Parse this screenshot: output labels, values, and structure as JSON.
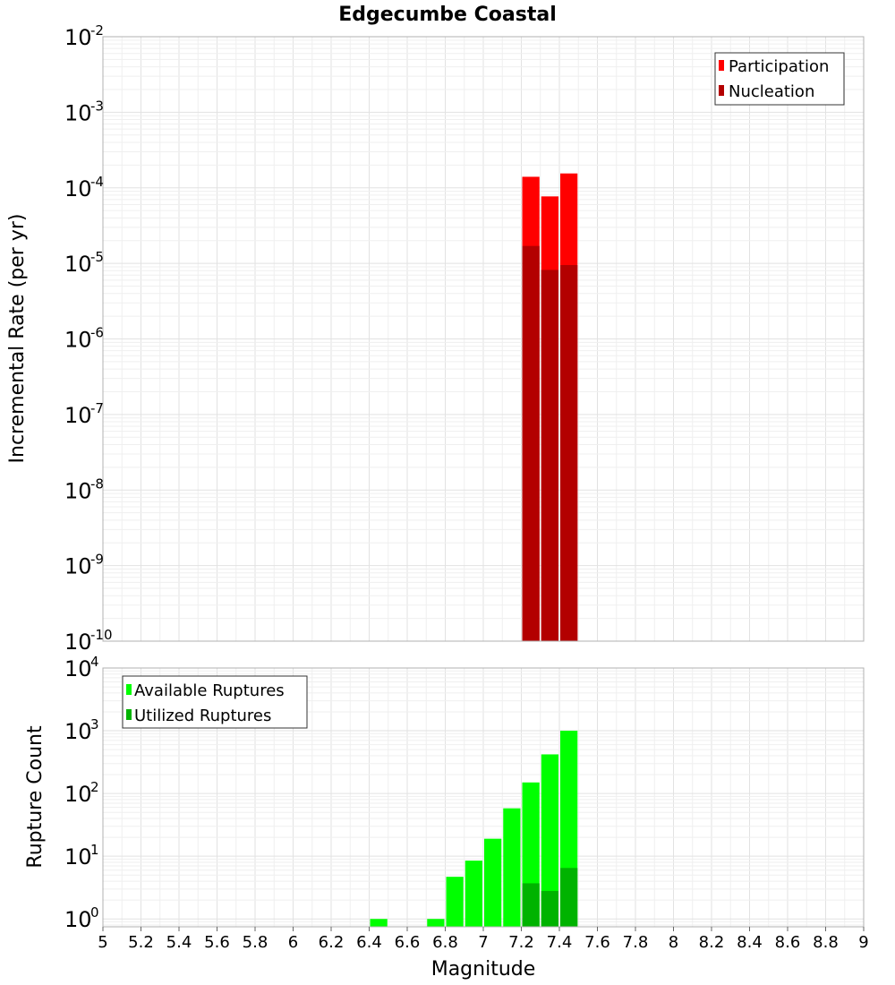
{
  "chart_data": [
    {
      "type": "bar",
      "title": "Edgecumbe Coastal",
      "xlabel": "",
      "ylabel": "Incremental Rate (per yr)",
      "yscale": "log",
      "ylim": [
        1e-10,
        0.01
      ],
      "xlim": [
        5,
        9
      ],
      "bin_width": 0.1,
      "grid": true,
      "legend_position": "top-right",
      "ytick_exponents": [
        "-2",
        "-3",
        "-4",
        "-5",
        "-6",
        "-7",
        "-8",
        "-9",
        "-10"
      ],
      "series": [
        {
          "name": "Participation",
          "color": "#ff0000",
          "x": [
            7.25,
            7.35,
            7.45
          ],
          "values": [
            0.00014,
            7.7e-05,
            0.000155
          ]
        },
        {
          "name": "Nucleation",
          "color": "#b30000",
          "x": [
            7.25,
            7.35,
            7.45
          ],
          "values": [
            1.7e-05,
            8.2e-06,
            9.5e-06
          ]
        }
      ]
    },
    {
      "type": "bar",
      "title": "",
      "xlabel": "Magnitude",
      "ylabel": "Rupture Count",
      "yscale": "log",
      "ylim": [
        0.75,
        10000
      ],
      "xlim": [
        5,
        9
      ],
      "bin_width": 0.1,
      "grid": true,
      "legend_position": "top-left",
      "ytick_exponents": [
        "4",
        "3",
        "2",
        "1",
        "0"
      ],
      "xticks": [
        "5",
        "5.2",
        "5.4",
        "5.6",
        "5.8",
        "6",
        "6.2",
        "6.4",
        "6.6",
        "6.8",
        "7",
        "7.2",
        "7.4",
        "7.6",
        "7.8",
        "8",
        "8.2",
        "8.4",
        "8.6",
        "8.8",
        "9"
      ],
      "series": [
        {
          "name": "Available Ruptures",
          "color": "#00ff00",
          "x": [
            6.45,
            6.75,
            6.85,
            6.95,
            7.05,
            7.15,
            7.25,
            7.35,
            7.45
          ],
          "values": [
            1,
            1,
            4.7,
            8.5,
            19,
            58,
            150,
            420,
            1000
          ]
        },
        {
          "name": "Utilized Ruptures",
          "color": "#00b300",
          "x": [
            7.25,
            7.35,
            7.45
          ],
          "values": [
            3.7,
            2.8,
            6.5
          ]
        }
      ]
    }
  ]
}
